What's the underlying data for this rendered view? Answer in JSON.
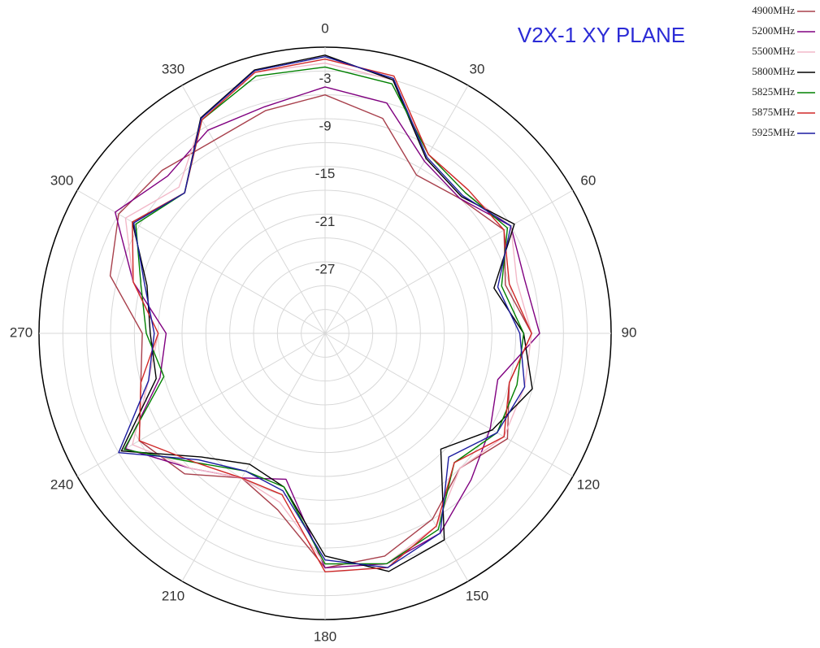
{
  "chart_data": {
    "type": "polar",
    "title": "V2X-1 XY PLANE",
    "xticks": [
      0,
      30,
      60,
      90,
      120,
      150,
      180,
      210,
      240,
      270,
      300,
      330
    ],
    "ylim": [
      -36,
      0
    ],
    "yticks": [
      -3,
      -9,
      -15,
      -21,
      -27
    ],
    "rgrid": [
      -33,
      -30,
      -27,
      -24,
      -21,
      -18,
      -15,
      -12,
      -9,
      -6,
      -3,
      0
    ],
    "x": [
      0,
      15,
      30,
      45,
      60,
      75,
      90,
      105,
      120,
      135,
      150,
      165,
      180,
      195,
      210,
      225,
      240,
      255,
      270,
      285,
      300,
      315,
      330,
      345
    ],
    "series": [
      {
        "name": "4900MHz",
        "color": "#a8404c",
        "values": [
          -6,
          -8,
          -13,
          -12,
          -10,
          -12.5,
          -10,
          -12,
          -9.5,
          -12,
          -9,
          -7,
          -6.5,
          -13,
          -15,
          -11,
          -9,
          -12,
          -13,
          -8,
          -6,
          -7,
          -8,
          -7
        ]
      },
      {
        "name": "5200MHz",
        "color": "#800080",
        "values": [
          -5,
          -6,
          -11,
          -12,
          -9,
          -10,
          -9,
          -13.5,
          -12,
          -10,
          -7,
          -6,
          -6.5,
          -17,
          -15,
          -12,
          -7,
          -14.5,
          -16,
          -11,
          -5.5,
          -8,
          -6.5,
          -6.5
        ]
      },
      {
        "name": "5500MHz",
        "color": "#f2b8c8",
        "values": [
          -2,
          -3,
          -10,
          -11,
          -9,
          -11,
          -10,
          -10,
          -10,
          -12,
          -8,
          -6,
          -7,
          -14,
          -15,
          -12,
          -8,
          -13,
          -15,
          -11,
          -7,
          -10,
          -5,
          -2
        ]
      },
      {
        "name": "5800MHz",
        "color": "#000000",
        "values": [
          -1,
          -3,
          -10.6,
          -11.7,
          -8.5,
          -14,
          -11,
          -9,
          -11.7,
          -15.4,
          -6,
          -5,
          -8,
          -16,
          -17,
          -14,
          -6.4,
          -14,
          -14,
          -12.8,
          -8,
          -11,
          -4.7,
          -1.7
        ]
      },
      {
        "name": "5825MHz",
        "color": "#008000",
        "values": [
          -2.5,
          -3.5,
          -10,
          -11,
          -9.5,
          -13,
          -11,
          -11,
          -11,
          -13,
          -7.5,
          -6,
          -7,
          -16,
          -16,
          -13,
          -6.8,
          -15,
          -13.5,
          -12,
          -8.5,
          -11,
          -5,
          -2.5
        ]
      },
      {
        "name": "5875MHz",
        "color": "#d02828",
        "values": [
          -1.5,
          -2.5,
          -10,
          -10.5,
          -10,
          -12,
          -10,
          -12,
          -10,
          -13,
          -8,
          -5.5,
          -6,
          -15,
          -15,
          -13,
          -9,
          -12,
          -15,
          -11,
          -8,
          -11,
          -5,
          -2
        ]
      },
      {
        "name": "5925MHz",
        "color": "#1c1ca0",
        "values": [
          -1.2,
          -2.8,
          -10.4,
          -11.5,
          -9,
          -13.5,
          -11.5,
          -10,
          -11,
          -14,
          -7,
          -5.5,
          -7.5,
          -15.5,
          -16,
          -13.5,
          -6,
          -13,
          -14.5,
          -12.5,
          -8.2,
          -11,
          -4.8,
          -1.8
        ]
      }
    ]
  }
}
